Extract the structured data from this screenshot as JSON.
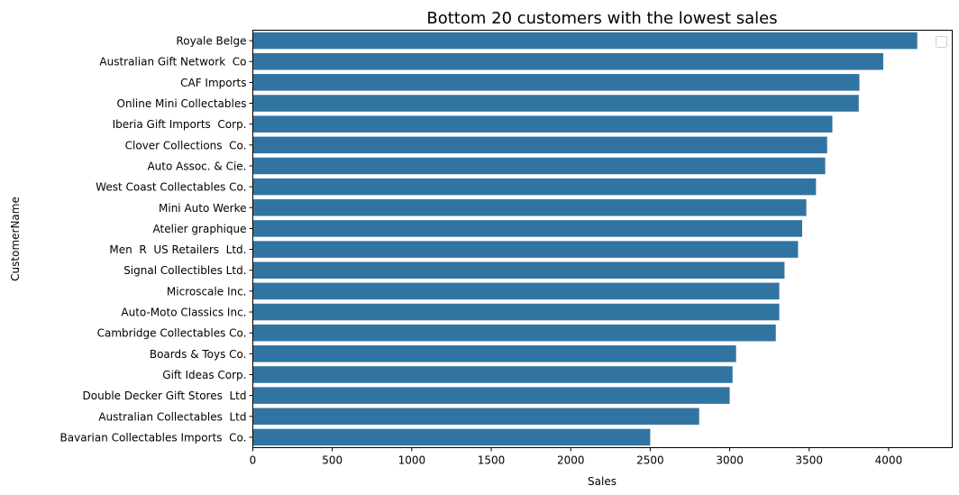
{
  "chart_data": {
    "type": "bar",
    "orientation": "horizontal",
    "title": "Bottom 20 customers with the lowest sales",
    "xlabel": "Sales",
    "ylabel": "CustomerName",
    "xlim": [
      0,
      4400
    ],
    "xticks": [
      0,
      500,
      1000,
      1500,
      2000,
      2500,
      3000,
      3500,
      4000
    ],
    "xtick_labels": [
      "0",
      "500",
      "1000",
      "1500",
      "2000",
      "2500",
      "3000",
      "3500",
      "4000"
    ],
    "grid": false,
    "legend": "top-right (empty)",
    "bar_color": "#3274a1",
    "categories": [
      "Royale Belge",
      "Australian Gift Network  Co",
      "CAF Imports",
      "Online Mini Collectables",
      "Iberia Gift Imports  Corp.",
      "Clover Collections  Co.",
      "Auto Assoc. & Cie.",
      "West Coast Collectables Co.",
      "Mini Auto Werke",
      "Atelier graphique",
      "Men  R  US Retailers  Ltd.",
      "Signal Collectibles Ltd.",
      "Microscale Inc.",
      "Auto-Moto Classics Inc.",
      "Cambridge Collectables Co.",
      "Boards & Toys Co.",
      "Gift Ideas Corp.",
      "Double Decker Gift Stores  Ltd",
      "Australian Collectables  Ltd",
      "Bavarian Collectables Imports  Co."
    ],
    "values": [
      4180,
      3966,
      3816,
      3812,
      3646,
      3613,
      3601,
      3543,
      3482,
      3456,
      3430,
      3345,
      3312,
      3312,
      3290,
      3040,
      3018,
      3000,
      2808,
      2500
    ]
  }
}
